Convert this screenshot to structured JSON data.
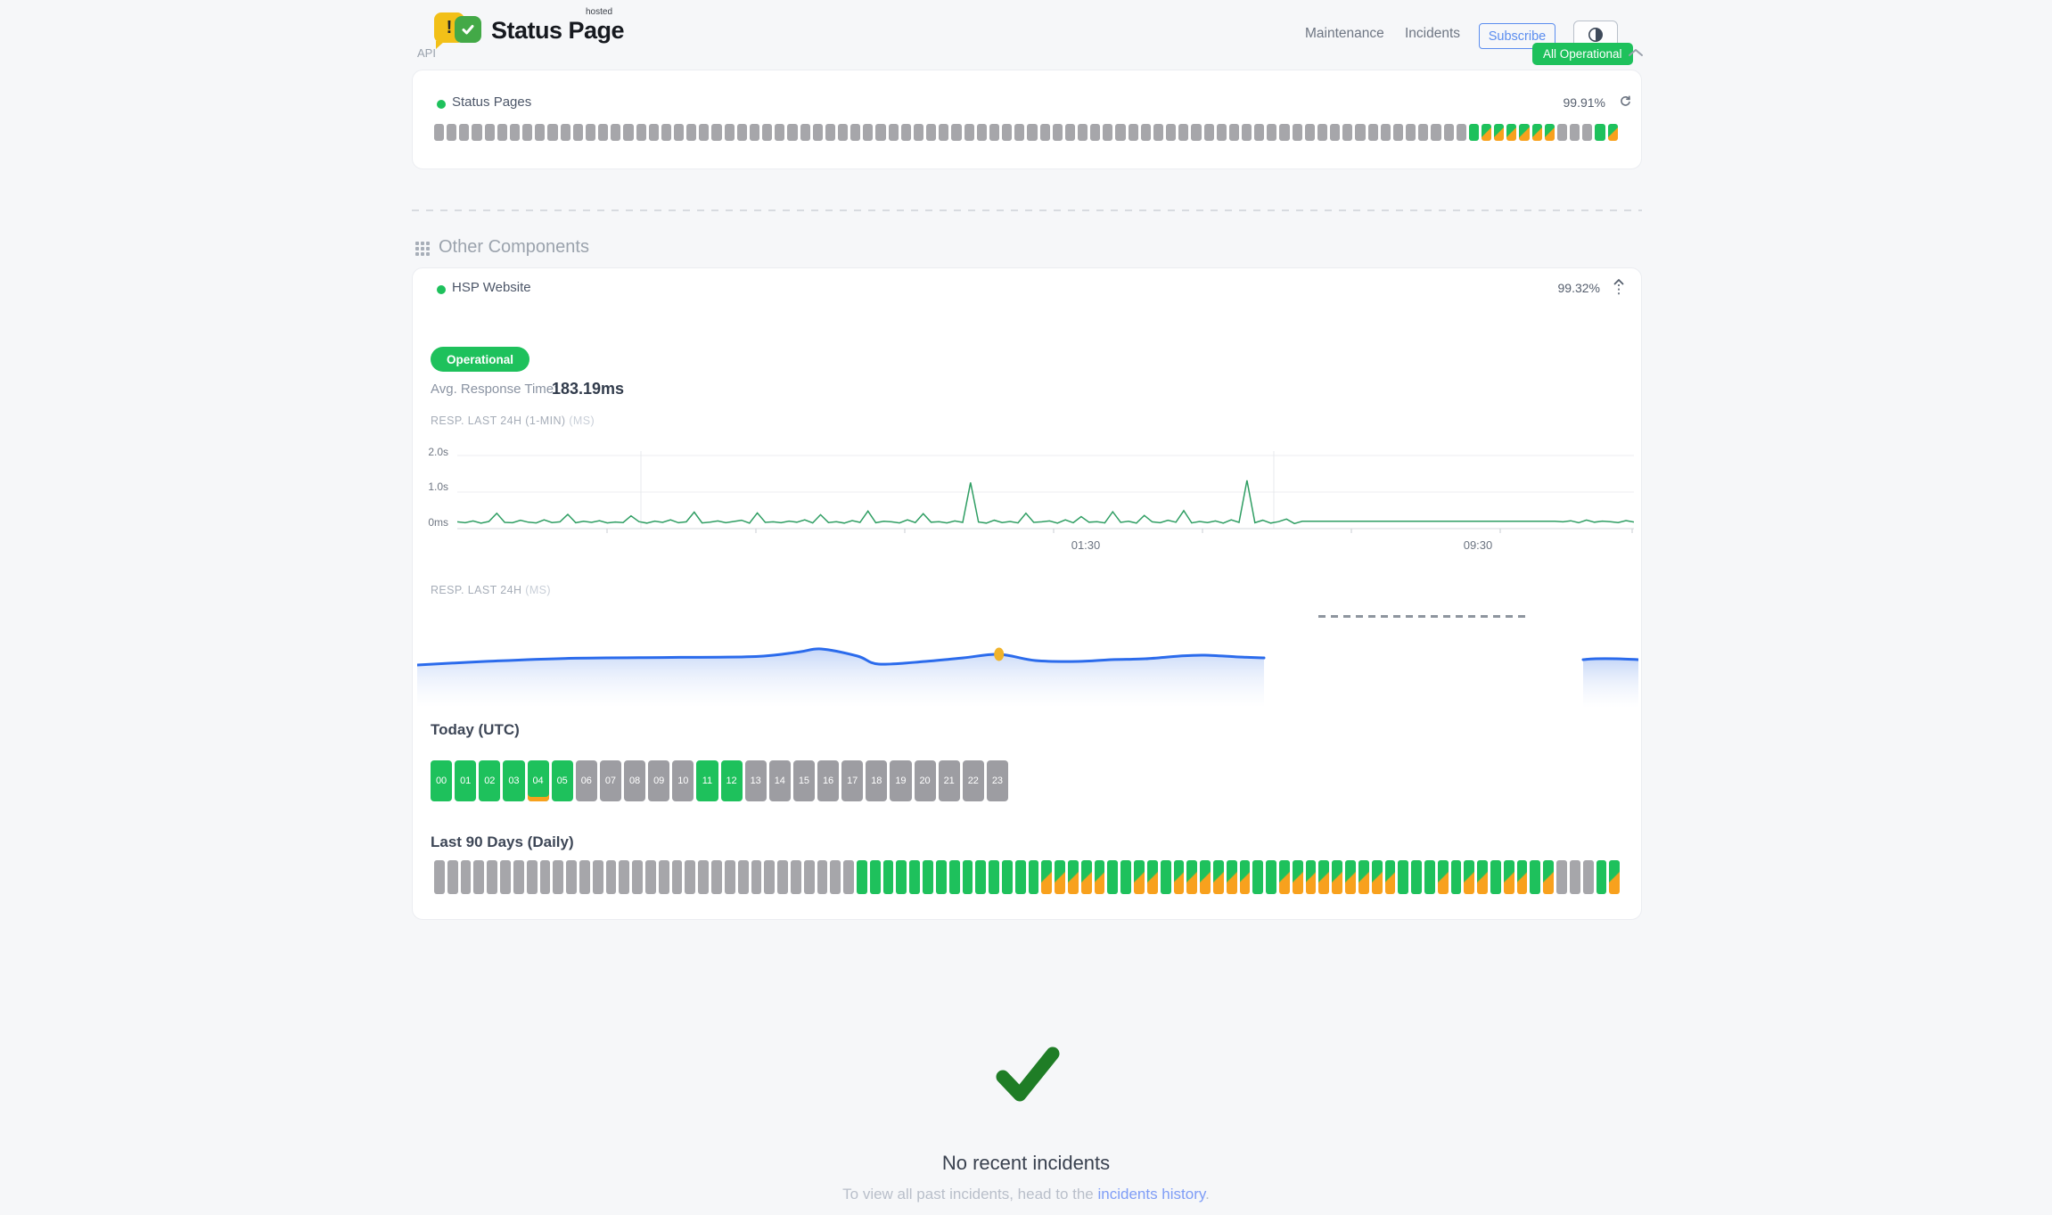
{
  "colors": {
    "green": "#1ec15c",
    "orange": "#f8a11d",
    "gray_bar": "#a6a6aa",
    "gray_box": "#9d9da2",
    "line_green": "#2f9e63",
    "blue": "#2b6bec",
    "marker_yellow": "#f0b32b",
    "check_green": "#1f7d26",
    "link": "#7f9df6"
  },
  "header": {
    "logo_exclaim": "!",
    "logo_title": "Status Page",
    "logo_superscript": "hosted",
    "nav": [
      {
        "label": "Maintenance"
      },
      {
        "label": "Incidents"
      }
    ],
    "subscribe_label": "Subscribe",
    "status_badge": "All Operational"
  },
  "api_section": {
    "label": "API",
    "component_name": "Status Pages",
    "uptime": "99.91%",
    "bars_runs": [
      {
        "state": "empty",
        "count": 82
      },
      {
        "state": "up",
        "count": 1
      },
      {
        "state": "partial",
        "count": 6
      },
      {
        "state": "empty",
        "count": 3
      },
      {
        "state": "up",
        "count": 1
      },
      {
        "state": "partial",
        "count": 1
      }
    ]
  },
  "other_section": {
    "title": "Other Components",
    "component_name": "HSP Website",
    "uptime": "99.32%",
    "status_label": "Operational",
    "avg_label": "Avg. Response Time:",
    "avg_value": "183.19ms",
    "chart_minute": {
      "type": "line",
      "label": "RESP. LAST 24H (1-MIN)",
      "unit": "(MS)",
      "ytick_labels": [
        "2.0s",
        "1.0s",
        "0ms"
      ],
      "xtick_labels": [
        "01:30",
        "09:30"
      ],
      "ylim_ms": [
        0,
        2140
      ],
      "values_ms": [
        185,
        160,
        210,
        150,
        195,
        420,
        170,
        160,
        230,
        175,
        155,
        240,
        165,
        185,
        390,
        160,
        200,
        170,
        215,
        155,
        180,
        165,
        350,
        190,
        150,
        205,
        170,
        240,
        160,
        185,
        450,
        155,
        175,
        210,
        160,
        195,
        230,
        150,
        430,
        170,
        185,
        160,
        205,
        175,
        240,
        155,
        380,
        165,
        190,
        150,
        220,
        170,
        480,
        160,
        200,
        185,
        155,
        240,
        165,
        410,
        175,
        190,
        155,
        210,
        170,
        1260,
        180,
        150,
        230,
        165,
        195,
        155,
        420,
        170,
        185,
        210,
        150,
        240,
        160,
        330,
        175,
        190,
        155,
        460,
        170,
        200,
        150,
        360,
        185,
        160,
        230,
        175,
        490,
        155,
        195,
        165,
        210,
        150,
        240,
        170,
        1320,
        160,
        230,
        150,
        190,
        260,
        140,
        200,
        200,
        200,
        200,
        200,
        200,
        200,
        200,
        200,
        200,
        200,
        200,
        200,
        200,
        200,
        200,
        200,
        200,
        200,
        200,
        200,
        200,
        200,
        200,
        200,
        200,
        200,
        200,
        200,
        200,
        200,
        200,
        200,
        185,
        215,
        160,
        235,
        175,
        205,
        190,
        165,
        220,
        180
      ]
    },
    "chart_day": {
      "type": "area",
      "label": "RESP. LAST 24H",
      "unit": "(MS)",
      "main_points": [
        [
          0.0,
          47
        ],
        [
          0.08,
          43
        ],
        [
          0.18,
          39.5
        ],
        [
          0.3,
          38.5
        ],
        [
          0.4,
          37.5
        ],
        [
          0.45,
          32.5
        ],
        [
          0.477,
          29
        ],
        [
          0.52,
          37
        ],
        [
          0.545,
          46
        ],
        [
          0.6,
          43
        ],
        [
          0.645,
          39
        ],
        [
          0.687,
          35
        ],
        [
          0.73,
          42
        ],
        [
          0.78,
          43
        ],
        [
          0.82,
          41
        ],
        [
          0.86,
          40
        ],
        [
          0.9,
          37
        ],
        [
          0.93,
          36
        ],
        [
          0.97,
          38
        ],
        [
          1.0,
          39
        ]
      ],
      "main_width": 950,
      "right_points": [
        [
          1308,
          41
        ],
        [
          1322,
          40
        ],
        [
          1345,
          40
        ],
        [
          1370,
          41
        ]
      ],
      "marker": {
        "fx": 0.687,
        "y": 35
      }
    },
    "today": {
      "title": "Today (UTC)",
      "hours": [
        {
          "label": "00",
          "state": "up",
          "marked": false
        },
        {
          "label": "01",
          "state": "up",
          "marked": false
        },
        {
          "label": "02",
          "state": "up",
          "marked": false
        },
        {
          "label": "03",
          "state": "up",
          "marked": false
        },
        {
          "label": "04",
          "state": "up",
          "marked": true
        },
        {
          "label": "05",
          "state": "up",
          "marked": false
        },
        {
          "label": "06",
          "state": "empty",
          "marked": false
        },
        {
          "label": "07",
          "state": "empty",
          "marked": false
        },
        {
          "label": "08",
          "state": "empty",
          "marked": false
        },
        {
          "label": "09",
          "state": "empty",
          "marked": false
        },
        {
          "label": "10",
          "state": "empty",
          "marked": false
        },
        {
          "label": "11",
          "state": "up",
          "marked": false
        },
        {
          "label": "12",
          "state": "up",
          "marked": false
        },
        {
          "label": "13",
          "state": "empty",
          "marked": false
        },
        {
          "label": "14",
          "state": "empty",
          "marked": false
        },
        {
          "label": "15",
          "state": "empty",
          "marked": false
        },
        {
          "label": "16",
          "state": "empty",
          "marked": false
        },
        {
          "label": "17",
          "state": "empty",
          "marked": false
        },
        {
          "label": "18",
          "state": "empty",
          "marked": false
        },
        {
          "label": "19",
          "state": "empty",
          "marked": false
        },
        {
          "label": "20",
          "state": "empty",
          "marked": false
        },
        {
          "label": "21",
          "state": "empty",
          "marked": false
        },
        {
          "label": "22",
          "state": "empty",
          "marked": false
        },
        {
          "label": "23",
          "state": "empty",
          "marked": false
        }
      ]
    },
    "last90": {
      "title": "Last 90 Days (Daily)",
      "bars_runs": [
        {
          "state": "empty",
          "count": 32
        },
        {
          "state": "up",
          "count": 14
        },
        {
          "state": "partial",
          "count": 5
        },
        {
          "state": "up",
          "count": 2
        },
        {
          "state": "partial",
          "count": 2
        },
        {
          "state": "up",
          "count": 1
        },
        {
          "state": "partial",
          "count": 6
        },
        {
          "state": "up",
          "count": 2
        },
        {
          "state": "partial",
          "count": 9
        },
        {
          "state": "up",
          "count": 3
        },
        {
          "state": "partial",
          "count": 1
        },
        {
          "state": "up",
          "count": 1
        },
        {
          "state": "partial",
          "count": 2
        },
        {
          "state": "up",
          "count": 1
        },
        {
          "state": "partial",
          "count": 2
        },
        {
          "state": "up",
          "count": 1
        },
        {
          "state": "partial",
          "count": 1
        },
        {
          "state": "empty",
          "count": 3
        },
        {
          "state": "up",
          "count": 1
        },
        {
          "state": "partial",
          "count": 1
        }
      ]
    }
  },
  "incidents": {
    "title": "No recent incidents",
    "subtitle_prefix": "To view all past incidents, head to the ",
    "link_text": "incidents history",
    "subtitle_suffix": "."
  }
}
